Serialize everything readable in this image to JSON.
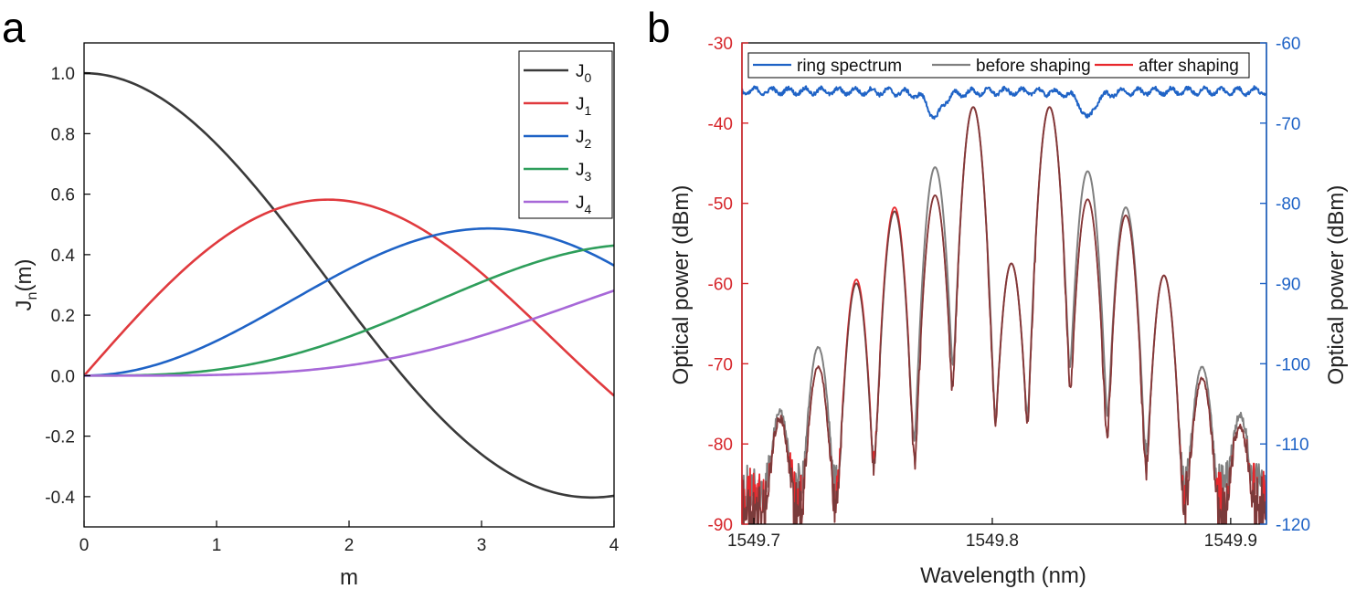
{
  "panel_a_letter": "a",
  "panel_b_letter": "b",
  "chart_data": [
    {
      "type": "line",
      "panel": "a",
      "title": "",
      "xlabel": "m",
      "ylabel_main": "J",
      "ylabel_sub": "n",
      "ylabel_tail": "(m)",
      "xlim": [
        0,
        4
      ],
      "ylim": [
        -0.5,
        1.1
      ],
      "xticks": [
        0,
        1,
        2,
        3,
        4
      ],
      "xtick_labels": [
        "0",
        "1",
        "2",
        "3",
        "4"
      ],
      "yticks": [
        -0.4,
        -0.2,
        0.0,
        0.2,
        0.4,
        0.6,
        0.8,
        1.0
      ],
      "ytick_labels": [
        "-0.4",
        "-0.2",
        "0.0",
        "0.2",
        "0.4",
        "0.6",
        "0.8",
        "1.0"
      ],
      "legend_position": "top-right",
      "series": [
        {
          "name": "J0",
          "legend_main": "J",
          "legend_sub": "0",
          "order": 0,
          "color": "#3a3a3a"
        },
        {
          "name": "J1",
          "legend_main": "J",
          "legend_sub": "1",
          "order": 1,
          "color": "#e03a3e"
        },
        {
          "name": "J2",
          "legend_main": "J",
          "legend_sub": "2",
          "order": 2,
          "color": "#1f63c6"
        },
        {
          "name": "J3",
          "legend_main": "J",
          "legend_sub": "3",
          "order": 3,
          "color": "#2e9e5b"
        },
        {
          "name": "J4",
          "legend_main": "J",
          "legend_sub": "4",
          "order": 4,
          "color": "#a768d8"
        }
      ]
    },
    {
      "type": "line",
      "panel": "b",
      "title": "",
      "xlabel": "Wavelength (nm)",
      "ylabel_left": "Optical power (dBm)",
      "ylabel_right": "Optical power (dBm)",
      "xlim": [
        1549.695,
        1549.915
      ],
      "ylim_left": [
        -90,
        -30
      ],
      "ylim_right": [
        -120,
        -60
      ],
      "xticks": [
        1549.7,
        1549.8,
        1549.9
      ],
      "xtick_labels": [
        "1549.7",
        "1549.8",
        "1549.9"
      ],
      "yticks_left": [
        -90,
        -80,
        -70,
        -60,
        -50,
        -40,
        -30
      ],
      "ytick_labels_left": [
        "-90",
        "-80",
        "-70",
        "-60",
        "-50",
        "-40",
        "-30"
      ],
      "yticks_right": [
        -120,
        -110,
        -100,
        -90,
        -80,
        -70,
        -60
      ],
      "ytick_labels_right": [
        "-120",
        "-110",
        "-100",
        "-90",
        "-80",
        "-70",
        "-60"
      ],
      "left_axis_color": "#d6262b",
      "right_axis_color": "#1f63c6",
      "legend_position": "top",
      "comb_lines": {
        "wavelengths": [
          1549.711,
          1549.727,
          1549.743,
          1549.759,
          1549.776,
          1549.792,
          1549.808,
          1549.824,
          1549.84,
          1549.856,
          1549.872,
          1549.888,
          1549.904
        ],
        "before_shaping_peaks_dBm": [
          -76.5,
          -68,
          -60,
          -51,
          -45.5,
          -38,
          -57.5,
          -38,
          -46,
          -50.5,
          -59,
          -70.5,
          -77
        ],
        "after_shaping_peaks_dBm": [
          -77.5,
          -70.5,
          -59.5,
          -50.5,
          -49,
          -38,
          -57.5,
          -38,
          -49.5,
          -51.5,
          -59,
          -72,
          -78.5
        ]
      },
      "ring_spectrum": {
        "baseline_dBm_right": -66,
        "dip_wavelengths": [
          1549.776,
          1549.84
        ],
        "dip_min_dBm_right": -69.5
      },
      "series": [
        {
          "name": "ring spectrum",
          "axis": "right",
          "color": "#1f63c6"
        },
        {
          "name": "before shaping",
          "axis": "left",
          "color": "#808080"
        },
        {
          "name": "after shaping",
          "axis": "left",
          "color": "#e8282d"
        }
      ]
    }
  ]
}
